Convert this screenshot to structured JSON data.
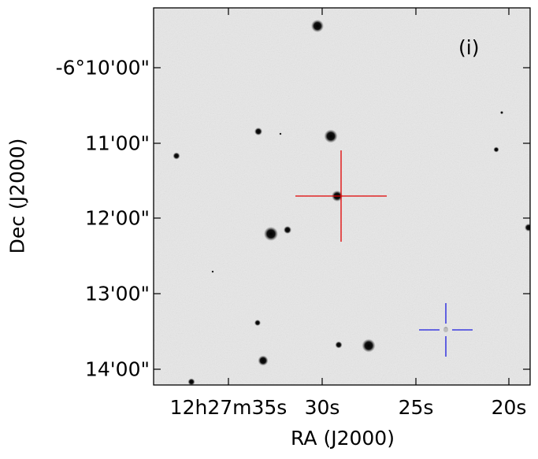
{
  "panel_label": "(i)",
  "axes": {
    "xlabel": "RA (J2000)",
    "ylabel": "Dec (J2000)",
    "x_ticks": [
      "12h27m35s",
      "30s",
      "25s",
      "20s"
    ],
    "y_ticks": [
      "-6°10'00\"",
      "11'00\"",
      "12'00\"",
      "13'00\"",
      "14'00\""
    ]
  },
  "markers": {
    "target": {
      "name": "target",
      "color": "#e00000"
    },
    "reference": {
      "name": "reference",
      "color": "#1a1adf"
    }
  },
  "image": {
    "type": "greyscale sky image",
    "background_color": "#e9e9e9"
  }
}
